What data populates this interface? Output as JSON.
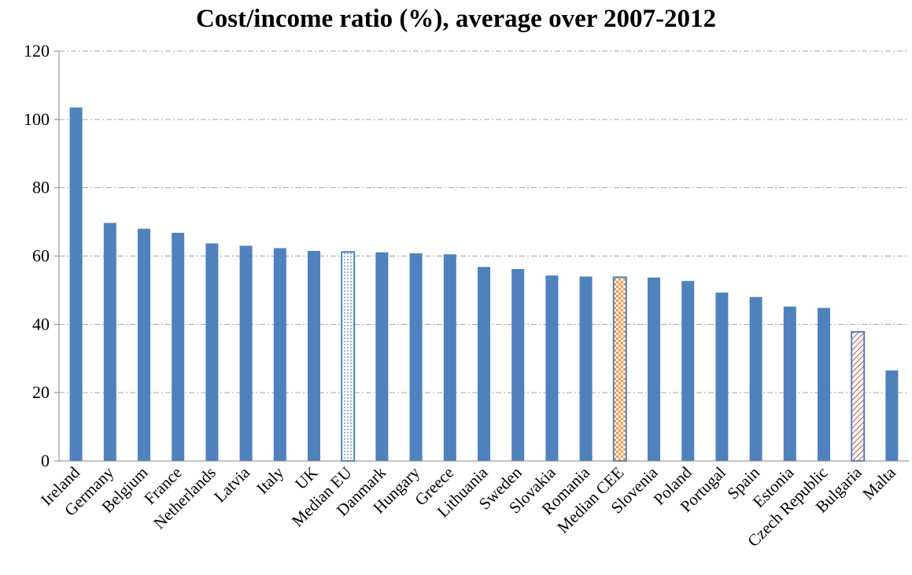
{
  "chart_data": {
    "type": "bar",
    "title": "Cost/income ratio (%), average over 2007-2012",
    "xlabel": "",
    "ylabel": "",
    "ylim": [
      0,
      120
    ],
    "yticks": [
      0,
      20,
      40,
      60,
      80,
      100,
      120
    ],
    "grid": "horizontal dash-dot",
    "legend": "none",
    "categories": [
      "Ireland",
      "Germany",
      "Belgium",
      "France",
      "Netherlands",
      "Latvia",
      "Italy",
      "UK",
      "Median EU",
      "Danmark",
      "Hungary",
      "Greece",
      "Lithuania",
      "Sweden",
      "Slovakia",
      "Romania",
      "Median CEE",
      "Slovenia",
      "Poland",
      "Portugal",
      "Spain",
      "Estonia",
      "Czech Republic",
      "Bulgaria",
      "Malta"
    ],
    "values": [
      103.5,
      69.7,
      68.0,
      66.8,
      63.7,
      63.0,
      62.3,
      61.5,
      61.2,
      61.1,
      60.8,
      60.5,
      56.8,
      56.2,
      54.3,
      54.0,
      53.8,
      53.7,
      52.7,
      49.3,
      48.0,
      45.2,
      44.8,
      37.8,
      26.5
    ],
    "bar_styles": [
      "solid",
      "solid",
      "solid",
      "solid",
      "solid",
      "solid",
      "solid",
      "solid",
      "dotted",
      "solid",
      "solid",
      "solid",
      "solid",
      "solid",
      "solid",
      "solid",
      "checkered",
      "solid",
      "solid",
      "solid",
      "solid",
      "solid",
      "solid",
      "hatched",
      "solid"
    ],
    "colors": {
      "bar": "#4F81BD",
      "bar_edge": "#4F81BD",
      "median_eu_dots": "#4F81BD",
      "median_cee_check": "#F79646",
      "bulgaria_hatch": "#C0504D",
      "grid": "#A6A6A6",
      "axis": "#868686"
    }
  }
}
